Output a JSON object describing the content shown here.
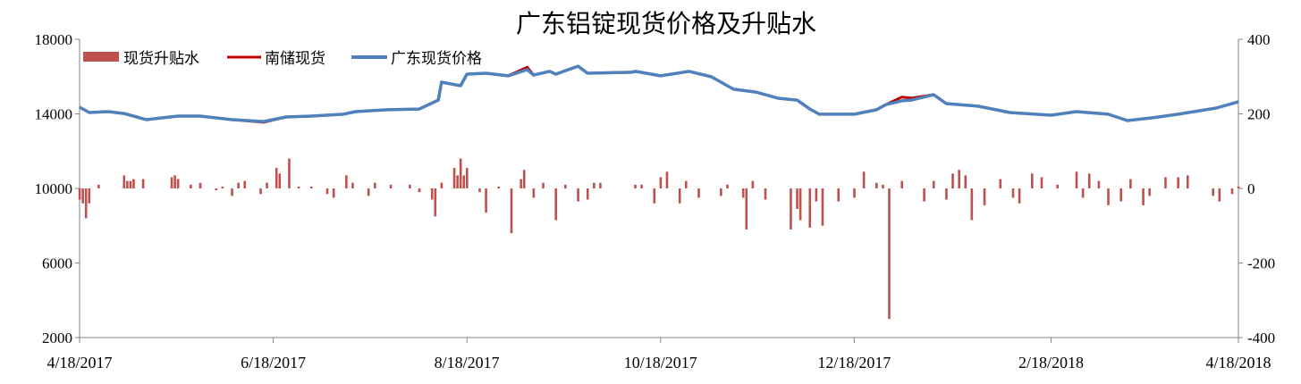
{
  "chart_data": {
    "type": "bar+line",
    "title": "广东铝锭现货价格及升贴水",
    "legend": {
      "placement": "top-left",
      "entries": [
        "现货升贴水",
        "南储现货",
        "广东现货价格"
      ]
    },
    "colors": {
      "premium": "#c0504d",
      "nanchu": "#c00000",
      "guangdong": "#4f81bd"
    },
    "grid": false,
    "x_range": [
      "2017-04-18",
      "2018-04-18"
    ],
    "x_ticks": [
      "4/18/2017",
      "6/18/2017",
      "8/18/2017",
      "10/18/2017",
      "12/18/2017",
      "2/18/2018",
      "4/18/2018"
    ],
    "x_tick_dates": [
      "2017-04-18",
      "2017-06-18",
      "2017-08-18",
      "2017-10-18",
      "2017-12-18",
      "2018-02-18",
      "2018-04-18"
    ],
    "y_left": {
      "range": [
        2000,
        18000
      ],
      "ticks": [
        "2000",
        "6000",
        "10000",
        "14000",
        "18000"
      ]
    },
    "y_right": {
      "range": [
        -400,
        400
      ],
      "ticks": [
        "-400",
        "-200",
        "0",
        "200",
        "400"
      ]
    },
    "line_dates": [
      "2017-04-18",
      "2017-04-21",
      "2017-04-27",
      "2017-05-02",
      "2017-05-05",
      "2017-05-09",
      "2017-05-19",
      "2017-05-26",
      "2017-06-05",
      "2017-06-15",
      "2017-06-22",
      "2017-06-30",
      "2017-07-10",
      "2017-07-14",
      "2017-07-24",
      "2017-08-03",
      "2017-08-09",
      "2017-08-10",
      "2017-08-16",
      "2017-08-18",
      "2017-08-24",
      "2017-08-31",
      "2017-09-06",
      "2017-09-08",
      "2017-09-13",
      "2017-09-15",
      "2017-09-22",
      "2017-09-25",
      "2017-10-09",
      "2017-10-10",
      "2017-10-18",
      "2017-10-27",
      "2017-11-03",
      "2017-11-10",
      "2017-11-17",
      "2017-11-24",
      "2017-11-30",
      "2017-12-04",
      "2017-12-07",
      "2017-12-18",
      "2017-12-25",
      "2017-12-28",
      "2018-01-02",
      "2018-01-05",
      "2018-01-12",
      "2018-01-16",
      "2018-01-26",
      "2018-02-05",
      "2018-02-18",
      "2018-02-26",
      "2018-03-08",
      "2018-03-14",
      "2018-03-22",
      "2018-03-30",
      "2018-04-11",
      "2018-04-18"
    ],
    "series": [
      {
        "name": "南储现货",
        "type": "line",
        "axis": "left",
        "values": [
          14360,
          14070,
          14120,
          14020,
          13880,
          13690,
          13880,
          13880,
          13690,
          13550,
          13830,
          13880,
          13980,
          14120,
          14220,
          14260,
          14740,
          15700,
          15510,
          16130,
          16180,
          16040,
          16500,
          16080,
          16280,
          16130,
          16560,
          16180,
          16230,
          16280,
          16040,
          16280,
          15990,
          15320,
          15170,
          14840,
          14740,
          14260,
          13980,
          13980,
          14220,
          14500,
          14900,
          14850,
          15030,
          14550,
          14410,
          14070,
          13930,
          14120,
          13980,
          13640,
          13790,
          13980,
          14310,
          14650
        ]
      },
      {
        "name": "广东现货价格",
        "type": "line",
        "axis": "left",
        "values": [
          14360,
          14070,
          14120,
          14020,
          13880,
          13690,
          13880,
          13880,
          13690,
          13590,
          13830,
          13880,
          13980,
          14120,
          14220,
          14260,
          14740,
          15700,
          15510,
          16130,
          16180,
          16040,
          16370,
          16080,
          16280,
          16130,
          16560,
          16180,
          16230,
          16280,
          16040,
          16280,
          15990,
          15320,
          15170,
          14840,
          14740,
          14260,
          13980,
          13980,
          14220,
          14500,
          14700,
          14740,
          15030,
          14550,
          14410,
          14070,
          13930,
          14120,
          13980,
          13640,
          13790,
          13980,
          14310,
          14650
        ]
      },
      {
        "name": "现货升贴水",
        "type": "bar",
        "axis": "right",
        "dates": [
          "2017-04-18",
          "2017-04-19",
          "2017-04-20",
          "2017-04-21",
          "2017-04-24",
          "2017-05-02",
          "2017-05-03",
          "2017-05-04",
          "2017-05-05",
          "2017-05-08",
          "2017-05-17",
          "2017-05-18",
          "2017-05-19",
          "2017-05-23",
          "2017-05-26",
          "2017-05-31",
          "2017-06-02",
          "2017-06-05",
          "2017-06-07",
          "2017-06-09",
          "2017-06-14",
          "2017-06-16",
          "2017-06-19",
          "2017-06-20",
          "2017-06-23",
          "2017-06-26",
          "2017-06-30",
          "2017-07-05",
          "2017-07-07",
          "2017-07-11",
          "2017-07-13",
          "2017-07-18",
          "2017-07-20",
          "2017-07-25",
          "2017-07-31",
          "2017-08-03",
          "2017-08-07",
          "2017-08-08",
          "2017-08-10",
          "2017-08-14",
          "2017-08-15",
          "2017-08-16",
          "2017-08-17",
          "2017-08-18",
          "2017-08-22",
          "2017-08-24",
          "2017-08-28",
          "2017-09-01",
          "2017-09-04",
          "2017-09-05",
          "2017-09-08",
          "2017-09-11",
          "2017-09-15",
          "2017-09-18",
          "2017-09-22",
          "2017-09-25",
          "2017-09-27",
          "2017-09-29",
          "2017-10-10",
          "2017-10-12",
          "2017-10-16",
          "2017-10-18",
          "2017-10-20",
          "2017-10-24",
          "2017-10-26",
          "2017-10-30",
          "2017-11-06",
          "2017-11-08",
          "2017-11-13",
          "2017-11-14",
          "2017-11-16",
          "2017-11-20",
          "2017-11-28",
          "2017-11-30",
          "2017-12-01",
          "2017-12-04",
          "2017-12-06",
          "2017-12-08",
          "2017-12-13",
          "2017-12-18",
          "2017-12-21",
          "2017-12-25",
          "2017-12-27",
          "2017-12-29",
          "2018-01-02",
          "2018-01-09",
          "2018-01-12",
          "2018-01-16",
          "2018-01-18",
          "2018-01-20",
          "2018-01-22",
          "2018-01-24",
          "2018-01-28",
          "2018-02-02",
          "2018-02-06",
          "2018-02-08",
          "2018-02-12",
          "2018-02-15",
          "2018-02-20",
          "2018-02-26",
          "2018-02-28",
          "2018-03-02",
          "2018-03-05",
          "2018-03-08",
          "2018-03-12",
          "2018-03-15",
          "2018-03-19",
          "2018-03-21",
          "2018-03-26",
          "2018-03-30",
          "2018-04-02",
          "2018-04-10",
          "2018-04-12",
          "2018-04-16",
          "2018-04-18"
        ],
        "values": [
          -30,
          -40,
          -80,
          -40,
          10,
          35,
          20,
          20,
          25,
          25,
          30,
          35,
          25,
          10,
          15,
          -5,
          5,
          -20,
          15,
          20,
          -15,
          15,
          55,
          40,
          80,
          5,
          5,
          -15,
          -25,
          35,
          15,
          -20,
          15,
          10,
          10,
          -10,
          -30,
          -75,
          15,
          55,
          35,
          80,
          35,
          55,
          -10,
          -65,
          5,
          -120,
          25,
          50,
          -25,
          15,
          -85,
          10,
          -35,
          -30,
          15,
          15,
          10,
          10,
          -40,
          30,
          45,
          -40,
          20,
          -25,
          -20,
          10,
          -25,
          -110,
          20,
          -30,
          -110,
          -55,
          -85,
          -105,
          -35,
          -100,
          -35,
          -25,
          45,
          15,
          10,
          -350,
          20,
          -35,
          20,
          -30,
          40,
          50,
          35,
          -85,
          -45,
          25,
          -25,
          -40,
          40,
          30,
          10,
          45,
          -25,
          40,
          20,
          -45,
          -35,
          25,
          -45,
          -20,
          30,
          30,
          35,
          -20,
          -35,
          -15,
          5
        ]
      }
    ]
  }
}
